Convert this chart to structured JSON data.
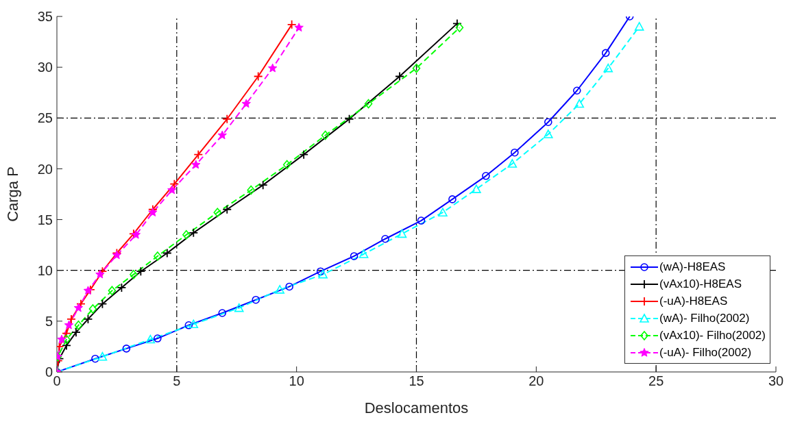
{
  "chart_data": {
    "type": "line",
    "xlabel": "Deslocamentos",
    "ylabel": "Carga P",
    "xlim": [
      0,
      30
    ],
    "xticks": [
      0,
      5,
      10,
      15,
      20,
      25,
      30
    ],
    "ylim": [
      0,
      35
    ],
    "yticks": [
      0,
      5,
      10,
      15,
      20,
      25,
      30,
      35
    ],
    "grid": false,
    "legend": "bottom right",
    "ref_lines": [
      {
        "axis": "x",
        "value": 5,
        "line_style": "dashed",
        "color": "#000000"
      },
      {
        "axis": "x",
        "value": 15,
        "line_style": "dashed",
        "color": "#000000"
      },
      {
        "axis": "x",
        "value": 25,
        "line_style": "dashed",
        "color": "#000000"
      },
      {
        "axis": "y",
        "value": 10,
        "line_style": "dashed",
        "color": "#000000"
      },
      {
        "axis": "y",
        "value": 25,
        "line_style": "dashed",
        "color": "#000000"
      }
    ],
    "series": [
      {
        "name": "(wA)-H8EAS",
        "color": "#0000ff",
        "marker": "circle",
        "line_style": "solid",
        "x": [
          0,
          1.6,
          2.9,
          4.2,
          5.5,
          6.9,
          8.3,
          9.7,
          11.0,
          12.4,
          13.7,
          15.2,
          16.5,
          17.9,
          19.1,
          20.5,
          21.7,
          22.9,
          23.9
        ],
        "values": [
          0,
          1.3,
          2.3,
          3.3,
          4.6,
          5.8,
          7.1,
          8.4,
          9.9,
          11.4,
          13.1,
          14.9,
          17.0,
          19.3,
          21.6,
          24.6,
          27.7,
          31.4,
          35
        ]
      },
      {
        "name": "(vAx10)-H8EAS",
        "color": "#000000",
        "marker": "cross",
        "line_style": "solid",
        "x": [
          0,
          0.1,
          0.4,
          0.8,
          1.3,
          1.9,
          2.7,
          3.5,
          4.6,
          5.7,
          7.1,
          8.6,
          10.3,
          12.2,
          14.3,
          16.7
        ],
        "values": [
          0,
          1.3,
          2.6,
          3.9,
          5.2,
          6.7,
          8.3,
          9.9,
          11.7,
          13.7,
          16.0,
          18.4,
          21.4,
          24.9,
          29.1,
          34.3
        ]
      },
      {
        "name": "(-uA)-H8EAS",
        "color": "#ff0000",
        "marker": "cross",
        "line_style": "solid",
        "x": [
          0,
          0.05,
          0.1,
          0.4,
          0.6,
          1.0,
          1.4,
          1.9,
          2.5,
          3.2,
          4.0,
          4.9,
          5.9,
          7.1,
          8.4,
          9.8
        ],
        "values": [
          0,
          1.1,
          2.5,
          3.8,
          5.2,
          6.7,
          8.1,
          9.9,
          11.7,
          13.6,
          16.0,
          18.5,
          21.4,
          24.9,
          29.1,
          34.2
        ]
      },
      {
        "name": "(wA)- Filho(2002)",
        "color": "#00ffff",
        "marker": "triangle",
        "line_style": "dashed",
        "x": [
          0,
          1.9,
          3.9,
          5.7,
          7.6,
          9.3,
          11.1,
          12.8,
          14.4,
          16.1,
          17.5,
          19.0,
          20.5,
          21.8,
          23.0,
          24.3
        ],
        "values": [
          0,
          1.5,
          3.2,
          4.7,
          6.3,
          8.1,
          9.6,
          11.6,
          13.6,
          15.7,
          18.0,
          20.5,
          23.4,
          26.4,
          29.9,
          34.0
        ]
      },
      {
        "name": "(vAx10)- Filho(2002)",
        "color": "#00ff00",
        "marker": "diamond",
        "line_style": "dashed",
        "x": [
          0,
          0.04,
          0.4,
          0.9,
          1.5,
          2.3,
          3.2,
          4.2,
          5.4,
          6.7,
          8.1,
          9.6,
          11.2,
          13.0,
          15.0,
          16.8
        ],
        "values": [
          0,
          1.5,
          3.2,
          4.6,
          6.2,
          8.0,
          9.6,
          11.4,
          13.5,
          15.7,
          17.9,
          20.4,
          23.3,
          26.4,
          29.9,
          33.9
        ]
      },
      {
        "name": "(-uA)- Filho(2002)",
        "color": "#ff00ff",
        "marker": "star",
        "line_style": "dashed",
        "x": [
          0,
          0.03,
          0.2,
          0.5,
          0.9,
          1.3,
          1.8,
          2.5,
          3.3,
          4.0,
          4.8,
          5.8,
          6.9,
          7.9,
          9.0,
          10.1
        ],
        "values": [
          0,
          1.5,
          3.2,
          4.6,
          6.3,
          8.0,
          9.6,
          11.5,
          13.5,
          15.7,
          17.9,
          20.4,
          23.3,
          26.4,
          29.9,
          33.9
        ]
      }
    ]
  }
}
